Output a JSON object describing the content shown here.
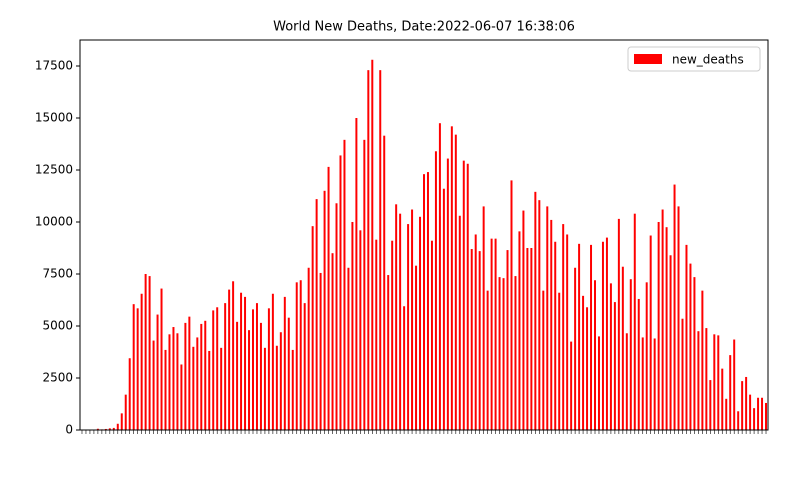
{
  "chart_data": {
    "type": "bar",
    "title": "World New Deaths, Date:2022-06-07 16:38:06",
    "categories": [
      null,
      null,
      null,
      null,
      null,
      null,
      null,
      null,
      null,
      null,
      null,
      null,
      null,
      null,
      null,
      null,
      null,
      null,
      null,
      null,
      null,
      null,
      null,
      null,
      null,
      null,
      null,
      null,
      null,
      null,
      null,
      null,
      null,
      null,
      null,
      null,
      null,
      null,
      null,
      null,
      null,
      null,
      null,
      null,
      null,
      null,
      null,
      null,
      null,
      null,
      null,
      null,
      null,
      null,
      null,
      null,
      null,
      null,
      null,
      null,
      null,
      null,
      null,
      null,
      null,
      null,
      null,
      null,
      null,
      null,
      null,
      null,
      null,
      null,
      null,
      null,
      null,
      null,
      null,
      null,
      null,
      null,
      null,
      null,
      null,
      null,
      null,
      null,
      null,
      null,
      null,
      null,
      null,
      null,
      null,
      null,
      null,
      null,
      null,
      null,
      null,
      null,
      null,
      null,
      null,
      null,
      null,
      null,
      null,
      null,
      null,
      null,
      null,
      null,
      null,
      null,
      null,
      null,
      null,
      null,
      null,
      null,
      null,
      null,
      null,
      null,
      null,
      null,
      null,
      null,
      null,
      null,
      null,
      null,
      null,
      null,
      null,
      null,
      null,
      null,
      null,
      null,
      null,
      null,
      null,
      null,
      null,
      null,
      null,
      null,
      null,
      null,
      null,
      null,
      null,
      null,
      null,
      null,
      null,
      null,
      null,
      null,
      null,
      null,
      null,
      null,
      null,
      null,
      null,
      null,
      null,
      null,
      null
    ],
    "series": [
      {
        "name": "new_deaths",
        "color": "#ff0000",
        "values": [
          0,
          0,
          10,
          20,
          60,
          30,
          50,
          80,
          100,
          300,
          800,
          1700,
          3450,
          6050,
          5850,
          6550,
          7500,
          7400,
          4300,
          5550,
          6800,
          3850,
          4600,
          4950,
          4650,
          3150,
          5150,
          5450,
          4000,
          4450,
          5100,
          5250,
          3800,
          5750,
          5900,
          3950,
          6100,
          6750,
          7150,
          5200,
          6600,
          6400,
          4800,
          5800,
          6100,
          5150,
          3950,
          5850,
          6550,
          4050,
          4700,
          6400,
          5400,
          3850,
          7100,
          7200,
          6100,
          7800,
          9800,
          11100,
          7550,
          11500,
          12650,
          8500,
          10900,
          13200,
          13950,
          7800,
          10000,
          15000,
          9600,
          13950,
          17300,
          17800,
          9150,
          17300,
          14150,
          7450,
          9100,
          10850,
          10400,
          5950,
          9900,
          10600,
          7900,
          10250,
          12300,
          12400,
          9100,
          13400,
          14750,
          11600,
          13050,
          14600,
          14200,
          10300,
          12950,
          12800,
          8700,
          9400,
          8600,
          10750,
          6700,
          9200,
          9200,
          7350,
          7300,
          8650,
          12000,
          7400,
          9550,
          10550,
          8750,
          8750,
          11450,
          11050,
          6700,
          10750,
          10100,
          9050,
          6600,
          9900,
          9400,
          4250,
          7800,
          8950,
          6450,
          5900,
          8900,
          7200,
          4500,
          9050,
          9250,
          7050,
          6150,
          10150,
          7850,
          4650,
          7250,
          10400,
          6300,
          4450,
          7100,
          9350,
          4400,
          10000,
          10600,
          9750,
          8400,
          11800,
          10750,
          5350,
          8900,
          8000,
          7350,
          4750,
          6700,
          4900,
          2400,
          4600,
          4550,
          2950,
          1500,
          3600,
          4350,
          900,
          2350,
          2550,
          1700,
          1050,
          1550,
          1550,
          1300
        ]
      }
    ],
    "ylim": [
      0,
      18750
    ],
    "yticks": [
      0,
      2500,
      5000,
      7500,
      10000,
      12500,
      15000,
      17500
    ],
    "legend": "upper right"
  }
}
